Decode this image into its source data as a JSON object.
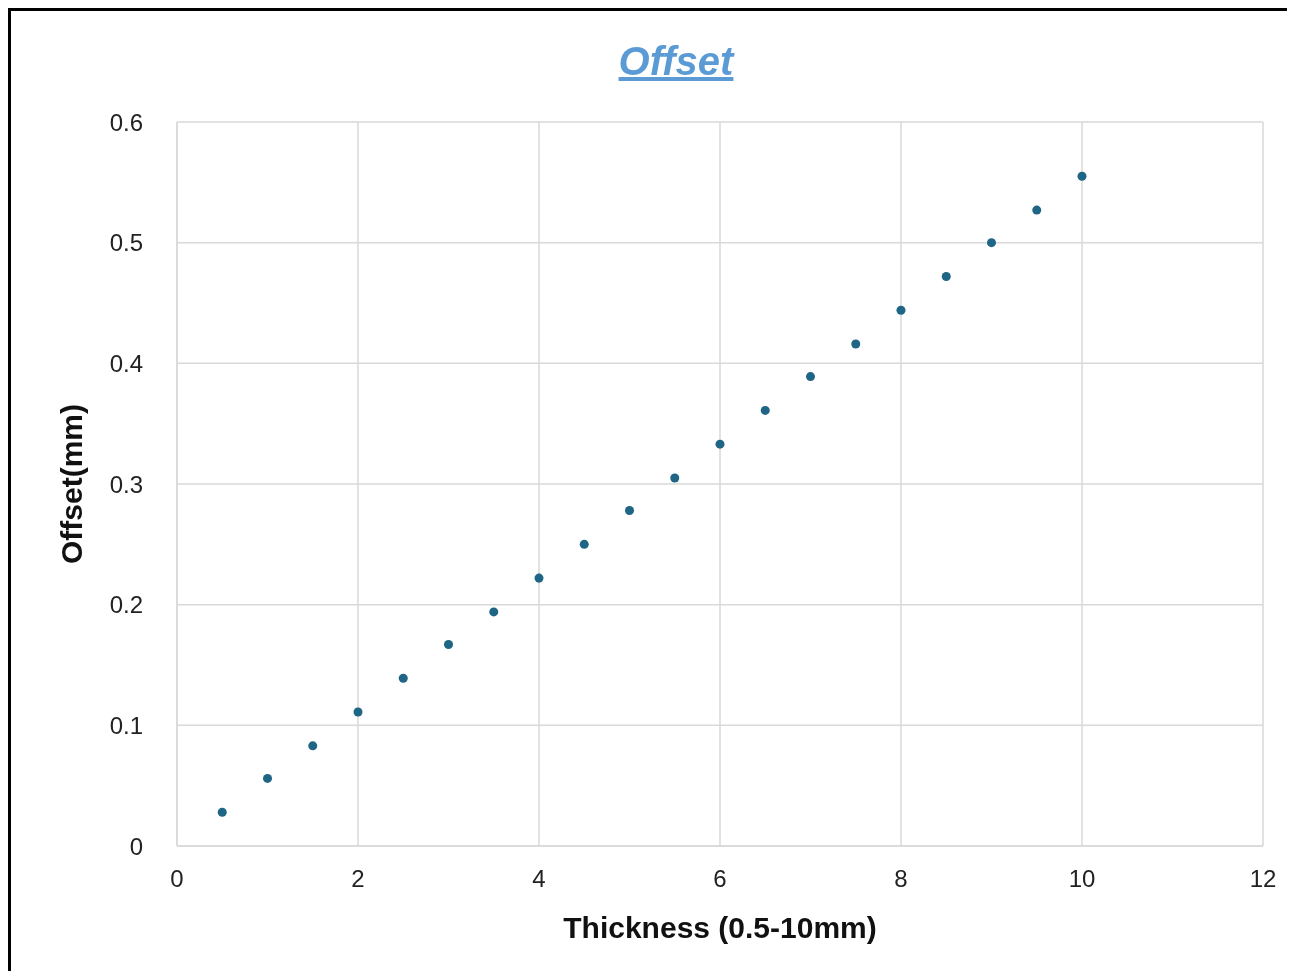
{
  "chart_data": {
    "type": "scatter",
    "title": "Offset",
    "xlabel": "Thickness (0.5-10mm)",
    "ylabel": "Offset(mm)",
    "x": [
      0.5,
      1,
      1.5,
      2,
      2.5,
      3,
      3.5,
      4,
      4.5,
      5,
      5.5,
      6,
      6.5,
      7,
      7.5,
      8,
      8.5,
      9,
      9.5,
      10
    ],
    "series": [
      {
        "color": "#1f6585",
        "values": [
          0.028,
          0.056,
          0.083,
          0.111,
          0.139,
          0.167,
          0.194,
          0.222,
          0.25,
          0.278,
          0.305,
          0.333,
          0.361,
          0.389,
          0.416,
          0.444,
          0.472,
          0.5,
          0.527,
          0.555
        ]
      }
    ],
    "xlim": [
      0,
      12
    ],
    "xticks": [
      0,
      2,
      4,
      6,
      8,
      10,
      12
    ],
    "ylim": [
      0,
      0.6
    ],
    "yticks": [
      0,
      0.1,
      0.2,
      0.3,
      0.4,
      0.5,
      0.6
    ],
    "grid": true,
    "marker": "circle",
    "legend": false
  }
}
